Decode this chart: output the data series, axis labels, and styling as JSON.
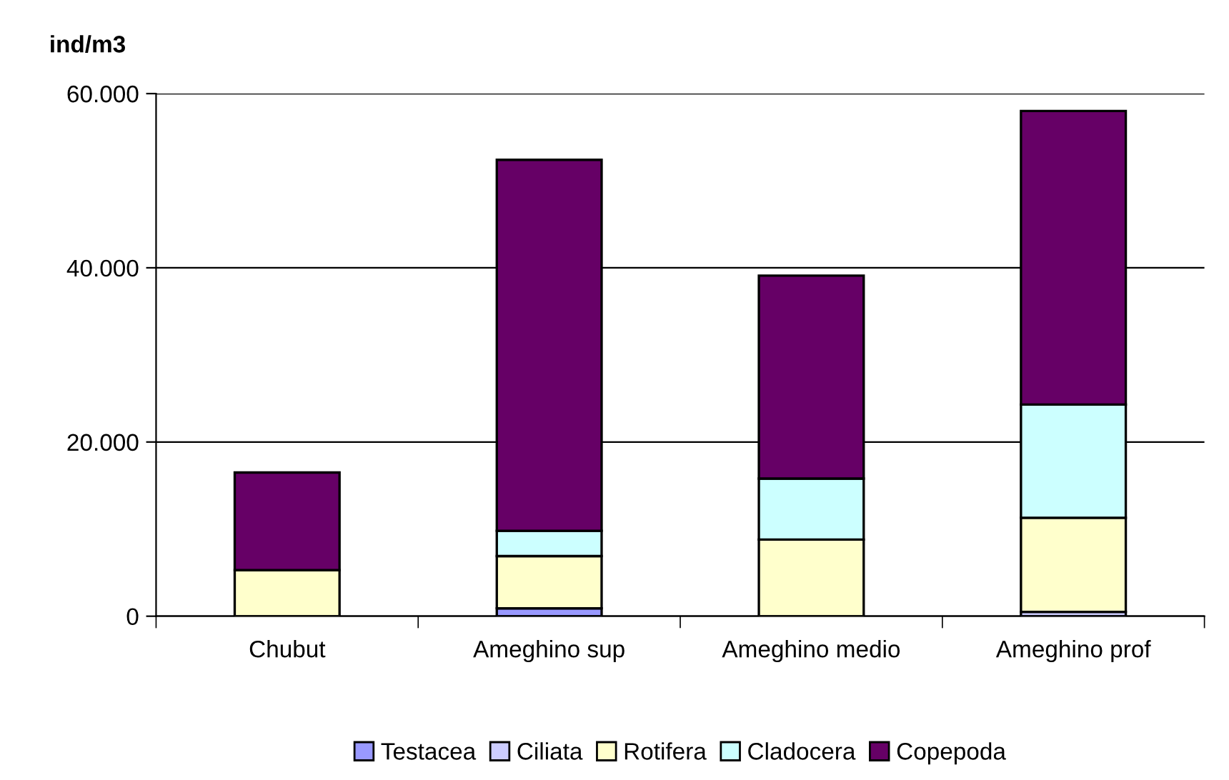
{
  "chart_data": {
    "type": "bar",
    "stacked": true,
    "ylabel": "ind/m3",
    "categories": [
      "Chubut",
      "Ameghino sup",
      "Ameghino medio",
      "Ameghino prof"
    ],
    "series": [
      {
        "name": "Testacea",
        "color": "#9999ff",
        "values": [
          0,
          900,
          0,
          null
        ]
      },
      {
        "name": "Ciliata",
        "color": "#ccccff",
        "values": [
          0,
          0,
          0,
          500
        ]
      },
      {
        "name": "Rotifera",
        "color": "#ffffcc",
        "values": [
          5300,
          6000,
          8800,
          10800
        ]
      },
      {
        "name": "Cladocera",
        "color": "#ccffff",
        "values": [
          0,
          2900,
          7000,
          13000
        ]
      },
      {
        "name": "Copepoda",
        "color": "#660066",
        "values": [
          11200,
          42600,
          23300,
          33700
        ]
      }
    ],
    "ylim": [
      0,
      60000
    ],
    "yticks": [
      0,
      {
        "value": 20000,
        "label": "20.000"
      },
      {
        "value": 40000,
        "label": "40.000"
      },
      {
        "value": 60000,
        "label": "60.000"
      }
    ],
    "grid": "y",
    "legend": "bottom"
  }
}
